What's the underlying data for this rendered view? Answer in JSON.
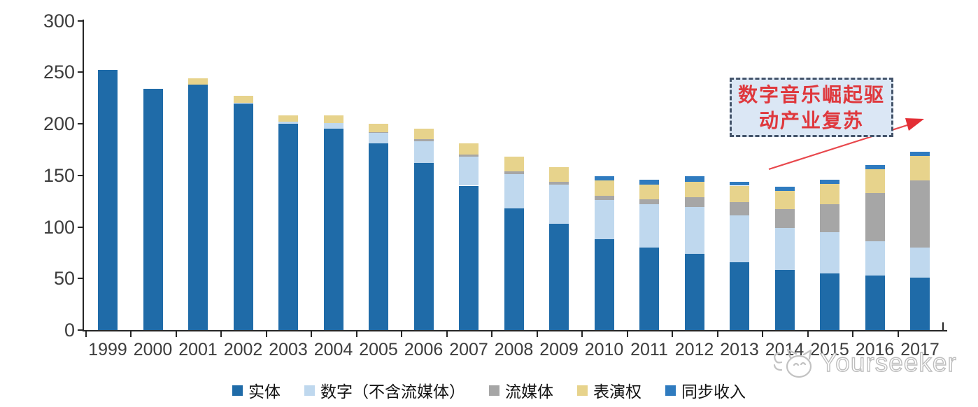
{
  "chart_data": {
    "type": "bar",
    "stacked": true,
    "title": "",
    "xlabel": "",
    "ylabel": "",
    "ylim": [
      0,
      300
    ],
    "yticks": [
      0,
      50,
      100,
      150,
      200,
      250,
      300
    ],
    "grid": false,
    "legend_position": "bottom",
    "categories": [
      "1999",
      "2000",
      "2001",
      "2002",
      "2003",
      "2004",
      "2005",
      "2006",
      "2007",
      "2008",
      "2009",
      "2010",
      "2011",
      "2012",
      "2013",
      "2014",
      "2015",
      "2016",
      "2017"
    ],
    "series": [
      {
        "name": "实体",
        "color": "#1f6ba8",
        "values": [
          252,
          234,
          238,
          220,
          200,
          195,
          181,
          162,
          140,
          118,
          103,
          88,
          80,
          74,
          66,
          58,
          55,
          53,
          51
        ]
      },
      {
        "name": "数字（不含流媒体）",
        "color": "#bfd8ee",
        "values": [
          0,
          0,
          0,
          0,
          2,
          6,
          10,
          21,
          28,
          33,
          38,
          38,
          42,
          45,
          45,
          41,
          40,
          33,
          29
        ]
      },
      {
        "name": "流媒体",
        "color": "#a6a6a6",
        "values": [
          0,
          0,
          0,
          0,
          0,
          0,
          1,
          2,
          2,
          3,
          3,
          4,
          5,
          10,
          13,
          18,
          27,
          47,
          65
        ]
      },
      {
        "name": "表演权",
        "color": "#e7d38c",
        "values": [
          0,
          0,
          6,
          7,
          6,
          7,
          8,
          10,
          11,
          14,
          14,
          15,
          14,
          15,
          16,
          18,
          20,
          23,
          24
        ]
      },
      {
        "name": "同步收入",
        "color": "#2f7bbf",
        "values": [
          0,
          0,
          0,
          0,
          0,
          0,
          0,
          0,
          0,
          0,
          0,
          4,
          5,
          5,
          4,
          4,
          4,
          4,
          4
        ]
      }
    ]
  },
  "annotation": {
    "line1": "数字音乐崛起驱",
    "line2": "动产业复苏",
    "text_color": "#df383d",
    "box_fill": "#dbe7f5",
    "box_border": "#44546a",
    "arrow_color": "#e8474c"
  },
  "watermark": {
    "text": "Yourseeker",
    "logo": "cat-face-icon",
    "color": "#bdbdbd"
  },
  "axis": {
    "line_color": "#262626",
    "label_color": "#3d3d3d"
  }
}
